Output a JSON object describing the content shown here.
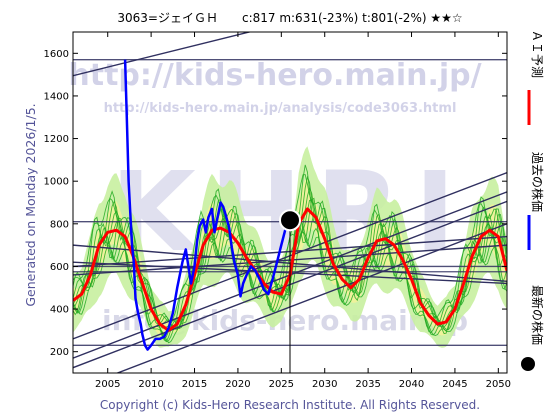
{
  "header": {
    "title": "3063=ジェイＧＨ　　c:817  m:631(-23%)  t:801(-2%)  ★★☆"
  },
  "watermark": {
    "url_large": "http://kids-hero.main.jp/",
    "url_analysis": "http://kids-hero.main.jp/analysis/code3063.html",
    "logo": "KHRI",
    "email": "info@kids-hero.main.jp"
  },
  "side_label": "Generated on Monday 2026/1/5.",
  "footer": "Copyright (c) Kids-Hero Research Institute. All Rights Reserved.",
  "legend": [
    {
      "label": "ＡＩ予測",
      "color": "#ff0000",
      "shape": "line"
    },
    {
      "label": "過去の株価",
      "color": "#0000ff",
      "shape": "line"
    },
    {
      "label": "最新の株価",
      "color": "#000000",
      "shape": "dot"
    }
  ],
  "colors": {
    "prediction": "#ff0000",
    "history": "#0000ff",
    "scenarios": "#22aa22",
    "band_outer": "#c8f0a0",
    "band_inner": "#f2f29a",
    "trend_lines": "#303060",
    "level_lines": "#303060"
  },
  "chart_data": {
    "type": "line",
    "title": "3063=ジェイＧＨ　　c:817  m:631(-23%)  t:801(-2%)  ★★☆",
    "xlabel": "",
    "ylabel": "",
    "xlim": [
      2001,
      2051
    ],
    "ylim": [
      100,
      1700
    ],
    "x_ticks": [
      2005,
      2010,
      2015,
      2020,
      2025,
      2030,
      2035,
      2040,
      2045,
      2050
    ],
    "y_ticks": [
      200,
      400,
      600,
      800,
      1000,
      1200,
      1400,
      1600
    ],
    "grid": false,
    "legend_position": "right-outside",
    "latest": {
      "x": 2026.0,
      "y": 817
    },
    "horizontal_levels": [
      1570,
      810,
      600,
      575,
      230
    ],
    "trend_lines": [
      [
        2001,
        1495,
        2051,
        2000
      ],
      [
        2001,
        260,
        2051,
        1040
      ],
      [
        2001,
        170,
        2051,
        950
      ],
      [
        2001,
        125,
        2051,
        905
      ],
      [
        2001,
        20,
        2051,
        800
      ],
      [
        2001,
        600,
        2051,
        740
      ],
      [
        2001,
        560,
        2051,
        700
      ],
      [
        2001,
        700,
        2051,
        530
      ],
      [
        2001,
        620,
        2051,
        520
      ]
    ],
    "series": [
      {
        "name": "過去の株価",
        "x": [
          2007.0,
          2007.2,
          2007.4,
          2007.6,
          2007.8,
          2008.0,
          2008.2,
          2008.5,
          2008.8,
          2009.0,
          2009.3,
          2009.6,
          2010.0,
          2010.5,
          2011.0,
          2011.5,
          2012.0,
          2012.5,
          2013.0,
          2013.3,
          2013.6,
          2014.0,
          2014.3,
          2014.6,
          2015.0,
          2015.3,
          2015.6,
          2016.0,
          2016.3,
          2016.6,
          2017.0,
          2017.3,
          2017.6,
          2018.0,
          2018.3,
          2018.6,
          2019.0,
          2019.3,
          2019.6,
          2020.0,
          2020.3,
          2020.6,
          2021.0,
          2021.5,
          2022.0,
          2022.5,
          2023.0,
          2023.5,
          2024.0,
          2024.5,
          2025.0,
          2025.5,
          2026.0
        ],
        "y": [
          1570,
          1300,
          1000,
          850,
          700,
          620,
          450,
          380,
          330,
          280,
          230,
          210,
          230,
          260,
          260,
          270,
          310,
          380,
          500,
          560,
          620,
          680,
          600,
          520,
          600,
          720,
          790,
          820,
          760,
          830,
          870,
          760,
          820,
          900,
          880,
          840,
          780,
          690,
          620,
          560,
          460,
          520,
          560,
          600,
          580,
          540,
          490,
          470,
          540,
          620,
          700,
          780,
          817
        ]
      },
      {
        "name": "ＡＩ予測",
        "x": [
          2001,
          2002,
          2003,
          2004,
          2005,
          2006,
          2007,
          2008,
          2009,
          2010,
          2011,
          2012,
          2013,
          2014,
          2015,
          2016,
          2017,
          2018,
          2019,
          2020,
          2021,
          2022,
          2023,
          2024,
          2025,
          2026,
          2027,
          2028,
          2029,
          2030,
          2031,
          2032,
          2033,
          2034,
          2035,
          2036,
          2037,
          2038,
          2039,
          2040,
          2041,
          2042,
          2043,
          2044,
          2045,
          2046,
          2047,
          2048,
          2049,
          2050,
          2051
        ],
        "y": [
          440,
          470,
          560,
          700,
          760,
          770,
          740,
          640,
          520,
          400,
          330,
          300,
          330,
          420,
          560,
          700,
          770,
          780,
          760,
          710,
          640,
          580,
          520,
          480,
          470,
          560,
          800,
          870,
          830,
          730,
          610,
          540,
          500,
          540,
          640,
          720,
          730,
          700,
          630,
          540,
          430,
          370,
          330,
          340,
          400,
          520,
          650,
          740,
          770,
          740,
          580
        ]
      }
    ]
  }
}
